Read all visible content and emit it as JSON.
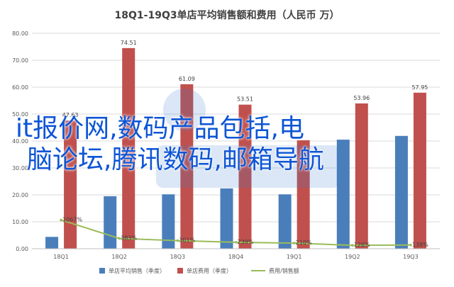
{
  "chart_data": {
    "type": "bar",
    "title": "18Q1-19Q3单店平均销售额和费用（人民币 万）",
    "categories": [
      "18Q1",
      "18Q2",
      "18Q3",
      "18Q4",
      "19Q1",
      "19Q2",
      "19Q3"
    ],
    "ylim": [
      0,
      80
    ],
    "yticks": [
      "0.00",
      "10.00",
      "20.00",
      "30.00",
      "40.00",
      "50.00",
      "60.00",
      "70.00",
      "80.00"
    ],
    "grid": true,
    "legend_position": "bottom",
    "series": [
      {
        "name": "单店平均销售（季度）",
        "type": "bar",
        "color": "#4a7ebb",
        "values": [
          4.4,
          19.5,
          20.2,
          22.4,
          20.2,
          40.5,
          41.9
        ]
      },
      {
        "name": "单店费用（季度）",
        "type": "bar",
        "color": "#c0504d",
        "values": [
          47.63,
          74.51,
          61.09,
          53.51,
          40.3,
          53.96,
          57.95
        ],
        "labels": [
          "47.63",
          "74.51",
          "61.09",
          "53.51",
          "",
          "53.96",
          "57.95"
        ]
      },
      {
        "name": "费用/销售额",
        "type": "line",
        "color": "#9bbb59",
        "values": [
          10.67,
          3.83,
          3.01,
          2.39,
          2.1,
          1.26,
          1.38
        ],
        "labels": [
          "1067%",
          "383%",
          "301%",
          "239%",
          "210%",
          "126%",
          "138%"
        ]
      }
    ]
  },
  "overlay": {
    "line1": "it报价网,数码产品包括,电",
    "line2": "脑论坛,腾讯数码,邮箱导航"
  }
}
